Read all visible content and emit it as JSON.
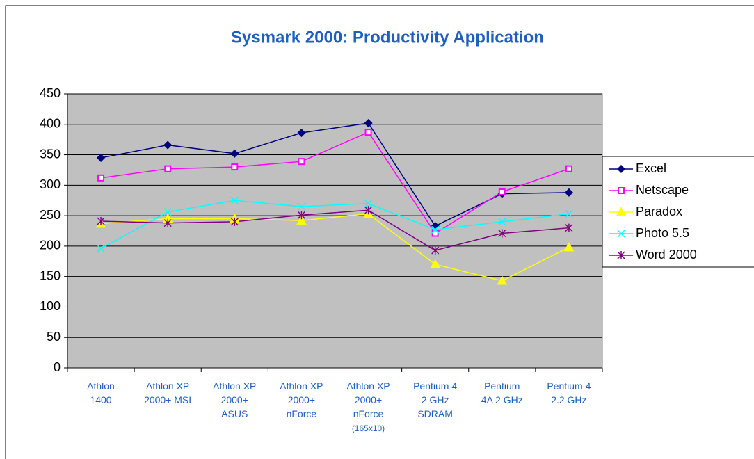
{
  "chart_data": {
    "type": "line",
    "title": "Sysmark 2000: Productivity Application",
    "categories": [
      "Athlon\n1400",
      "Athlon XP\n2000+ MSI",
      "Athlon XP\n2000+\nASUS",
      "Athlon XP\n2000+\nnForce",
      "Athlon XP\n2000+\nnForce\n(165x10)",
      "Pentium 4\n2 GHz\nSDRAM",
      "Pentium\n4A 2 GHz",
      "Pentium 4\n2.2 GHz"
    ],
    "series": [
      {
        "name": "Excel",
        "color": "#000080",
        "marker": "diamond",
        "values": [
          345,
          366,
          352,
          386,
          402,
          233,
          286,
          288
        ]
      },
      {
        "name": "Netscape",
        "color": "#ff00ff",
        "marker": "square",
        "values": [
          312,
          327,
          330,
          339,
          387,
          221,
          289,
          327
        ]
      },
      {
        "name": "Paradox",
        "color": "#ffff00",
        "marker": "triangle",
        "values": [
          237,
          245,
          245,
          242,
          253,
          170,
          143,
          198
        ]
      },
      {
        "name": "Photo 5.5",
        "color": "#00ffff",
        "marker": "x",
        "values": [
          196,
          256,
          275,
          265,
          270,
          227,
          240,
          253
        ]
      },
      {
        "name": "Word 2000",
        "color": "#800080",
        "marker": "star",
        "values": [
          241,
          238,
          240,
          251,
          259,
          193,
          221,
          230
        ]
      }
    ],
    "ylim": [
      0,
      450
    ],
    "yticks": [
      0,
      50,
      100,
      150,
      200,
      250,
      300,
      350,
      400,
      450
    ],
    "grid": true,
    "legend": "right"
  }
}
